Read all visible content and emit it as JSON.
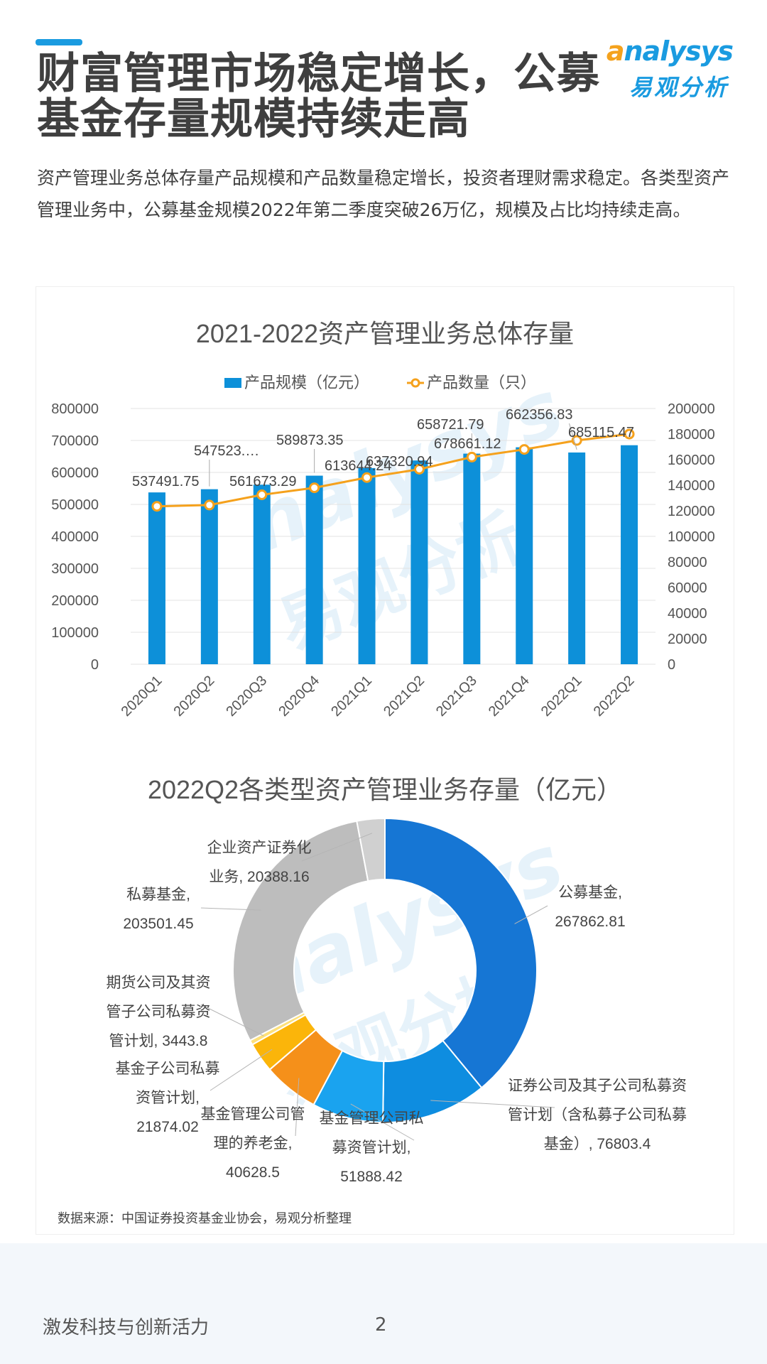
{
  "header": {
    "title": "财富管理市场稳定增长，公募基金存量规模持续走高",
    "logo_en_o": "a",
    "logo_en_rest": "nalysys",
    "logo_cn": "易观分析"
  },
  "lead_text": "资产管理业务总体存量产品规模和产品数量稳定增长，投资者理财需求稳定。各类型资产管理业务中，公募基金规模2022年第二季度突破26万亿，规模及占比均持续走高。",
  "source_note": "数据来源：中国证券投资基金业协会，易观分析整理",
  "footer": {
    "slogan": "激发科技与创新活力",
    "page_number": "2"
  },
  "colors": {
    "bar": "#0d90d9",
    "line": "#f5a11c",
    "title": "#3f3f3f",
    "accent": "#1a9be0"
  },
  "chart_data": [
    {
      "type": "bar",
      "title": "2021-2022资产管理业务总体存量",
      "categories": [
        "2020Q1",
        "2020Q2",
        "2020Q3",
        "2020Q4",
        "2021Q1",
        "2021Q2",
        "2021Q3",
        "2021Q4",
        "2022Q1",
        "2022Q2"
      ],
      "series": [
        {
          "name": "产品规模（亿元）",
          "type": "bar",
          "axis": "left",
          "values": [
            537491.75,
            547523,
            561673.29,
            589873.35,
            613644.24,
            637320.94,
            658721.79,
            678661.12,
            662356.83,
            685115.47
          ],
          "labels": [
            "537491.75",
            "547523.…",
            "561673.29",
            "589873.35",
            "613644.24",
            "637320.94",
            "658721.79",
            "678661.12",
            "662356.83",
            "685115.47"
          ]
        },
        {
          "name": "产品数量（只）",
          "type": "line",
          "axis": "right",
          "values": [
            123500,
            124500,
            132500,
            138000,
            146000,
            152500,
            162000,
            168000,
            175000,
            180000
          ]
        }
      ],
      "y_left": {
        "min": 0,
        "max": 800000,
        "ticks": [
          "0",
          "100000",
          "200000",
          "300000",
          "400000",
          "500000",
          "600000",
          "700000",
          "800000"
        ]
      },
      "y_right": {
        "min": 0,
        "max": 200000,
        "ticks": [
          "0",
          "20000",
          "40000",
          "60000",
          "80000",
          "100000",
          "120000",
          "140000",
          "160000",
          "180000",
          "200000"
        ]
      },
      "legend": "top",
      "grid": true
    },
    {
      "type": "pie",
      "title": "2022Q2各类型资产管理业务存量（亿元）",
      "donut": true,
      "slices": [
        {
          "label_lines": [
            "公募基金,",
            "267862.81"
          ],
          "value": 267862.81,
          "color": "#1676d4"
        },
        {
          "label_lines": [
            "证券公司及其子公司私募资",
            "管计划（含私募子公司私募",
            "基金）, 76803.4"
          ],
          "value": 76803.4,
          "color": "#0e8de0"
        },
        {
          "label_lines": [
            "基金管理公司私",
            "募资管计划,",
            "51888.42"
          ],
          "value": 51888.42,
          "color": "#1aa3ef"
        },
        {
          "label_lines": [
            "基金管理公司管",
            "理的养老金,",
            "40628.5"
          ],
          "value": 40628.5,
          "color": "#f5901a"
        },
        {
          "label_lines": [
            "基金子公司私募",
            "资管计划,",
            "21874.02"
          ],
          "value": 21874.02,
          "color": "#fbb50a"
        },
        {
          "label_lines": [
            "期货公司及其资",
            "管子公司私募资",
            "管计划, 3443.8"
          ],
          "value": 3443.8,
          "color": "#fde07a"
        },
        {
          "label_lines": [
            "私募基金,",
            "203501.45"
          ],
          "value": 203501.45,
          "color": "#bdbdbd"
        },
        {
          "label_lines": [
            "企业资产证券化",
            "业务, 20388.16"
          ],
          "value": 20388.16,
          "color": "#d0d0d0"
        }
      ]
    }
  ]
}
